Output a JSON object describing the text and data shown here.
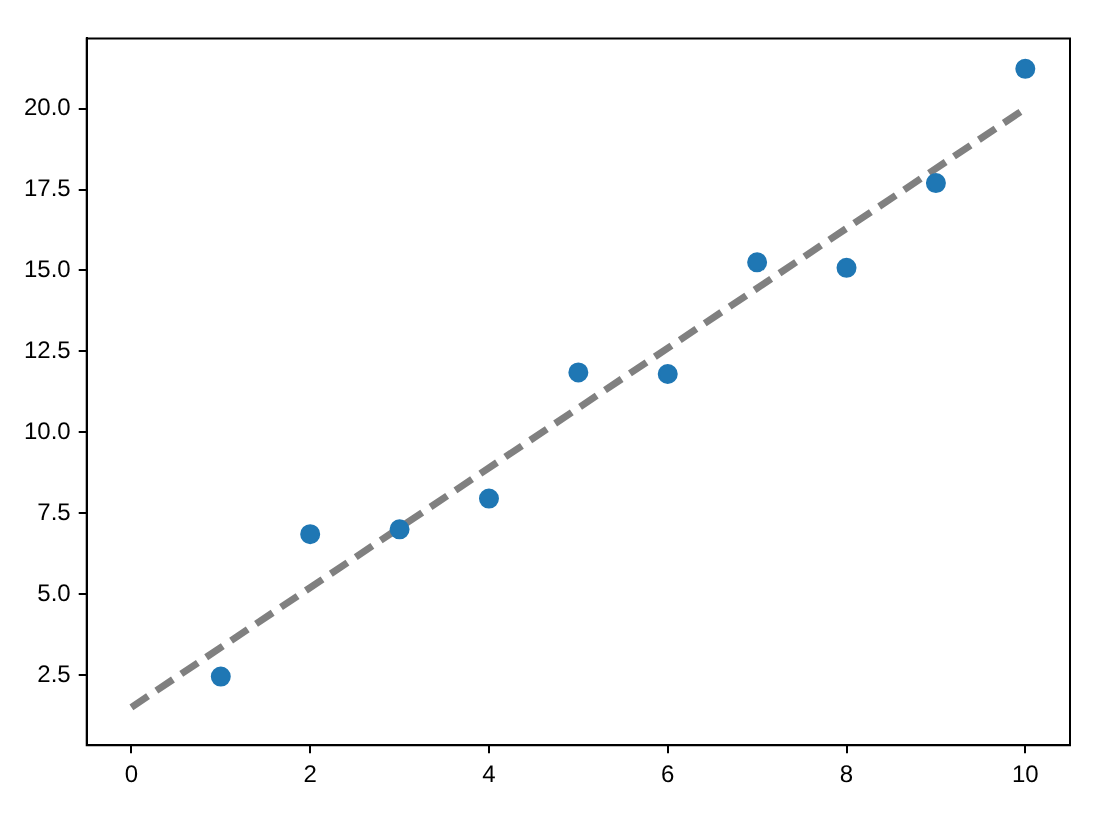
{
  "chart_data": {
    "type": "scatter",
    "x": [
      1,
      2,
      3,
      4,
      5,
      6,
      7,
      8,
      9,
      10
    ],
    "series": [
      {
        "color": "#1f77b4",
        "marker": "circle",
        "values": [
          2.45,
          6.85,
          7.0,
          7.95,
          11.85,
          11.8,
          15.25,
          15.08,
          17.7,
          21.23
        ]
      },
      {
        "type": "line",
        "color": "#808080",
        "line_style": "dashed",
        "marker": "none",
        "x": [
          0,
          10
        ],
        "values": [
          1.5,
          20
        ]
      }
    ],
    "xlim": [
      -0.5,
      10.5
    ],
    "xticks": [
      0,
      2,
      4,
      6,
      8,
      10
    ],
    "ylim": [
      0.33,
      22.17
    ],
    "yticks": [
      {
        "value": 2.5,
        "label": "2.5"
      },
      {
        "value": 5,
        "label": "5.0"
      },
      {
        "value": 7.5,
        "label": "7.5"
      },
      {
        "value": 10,
        "label": "10.0"
      },
      {
        "value": 12.5,
        "label": "12.5"
      },
      {
        "value": 15,
        "label": "15.0"
      },
      {
        "value": 17.5,
        "label": "17.5"
      },
      {
        "value": 20,
        "label": "20.0"
      }
    ],
    "grid": false,
    "legend": false
  }
}
